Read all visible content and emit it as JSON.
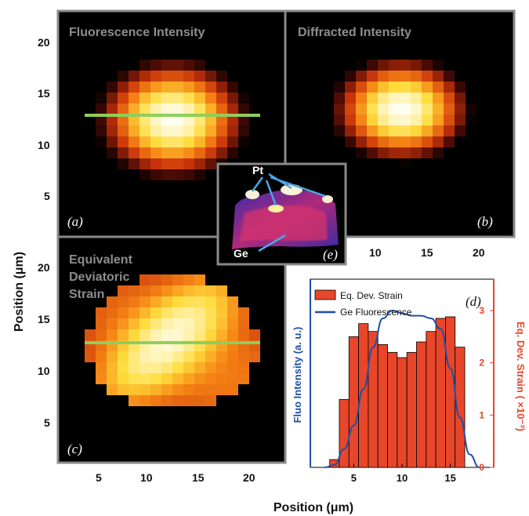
{
  "figure": {
    "panel_a_title": "Fluorescence Intensity",
    "panel_b_title": "Diffracted Intensity",
    "panel_c_title_lines": [
      "Equivalent",
      "Deviatoric",
      "Strain"
    ],
    "letters": {
      "a": "(a)",
      "b": "(b)",
      "c": "(c)",
      "d": "(d)",
      "e": "(e)"
    },
    "y_axis_label": "Position (μm)",
    "x_axis_label": "Position (μm)",
    "inset_labels": {
      "pt": "Pt",
      "ge": "Ge"
    }
  },
  "colors": {
    "green_line": "#8fce5b",
    "bar_fill": "#e8462a",
    "line_color": "#1f4fa6",
    "frame": "#8a8a8a"
  },
  "chart_data": [
    {
      "type": "heatmap",
      "panel": "a",
      "title": "Fluorescence Intensity",
      "x_ticks": [
        5,
        10,
        15,
        20
      ],
      "y_ticks": [
        5,
        10,
        15,
        20
      ],
      "colormap": "black-red-yellow-white"
    },
    {
      "type": "heatmap",
      "panel": "b",
      "title": "Diffracted Intensity",
      "x_ticks": [
        10,
        15,
        20
      ],
      "colormap": "black-red-yellow-white"
    },
    {
      "type": "heatmap",
      "panel": "c",
      "title": "Equivalent Deviatoric Strain",
      "x_ticks": [
        5,
        10,
        15,
        20
      ],
      "y_ticks": [
        5,
        10,
        15,
        20
      ],
      "colormap": "black-red-yellow-white"
    },
    {
      "type": "bar",
      "panel": "d",
      "series": [
        {
          "name": "Eq. Dev. Strain",
          "kind": "bar",
          "axis": "right",
          "x": [
            3,
            4,
            5,
            6,
            7,
            8,
            9,
            10,
            11,
            12,
            13,
            14,
            15,
            16,
            17
          ],
          "values": [
            0.15,
            1.3,
            2.5,
            2.75,
            2.6,
            2.35,
            2.2,
            2.1,
            2.2,
            2.4,
            2.6,
            2.85,
            2.88,
            2.3,
            0.0
          ]
        },
        {
          "name": "Ge Fluorescence",
          "kind": "line",
          "axis": "left",
          "x": [
            2,
            3,
            4,
            5,
            6,
            7,
            8,
            9,
            10,
            11,
            12,
            13,
            14,
            15,
            16,
            17,
            18
          ],
          "values": [
            0.0,
            0.05,
            0.35,
            0.8,
            1.5,
            2.3,
            2.85,
            3.0,
            2.95,
            2.9,
            2.9,
            2.85,
            2.65,
            1.9,
            0.95,
            0.25,
            0.0
          ]
        }
      ],
      "x_ticks": [
        5,
        10,
        15
      ],
      "xlim": [
        0.5,
        19.5
      ],
      "right_ylim": [
        0,
        3.6
      ],
      "right_ticks": [
        0,
        1,
        2,
        3
      ],
      "ylabel_left": "Fluo Intensity (a. u.)",
      "ylabel_right": "Eq. Dev. Strain ( ×10⁻³)",
      "legend": "top-left"
    }
  ]
}
